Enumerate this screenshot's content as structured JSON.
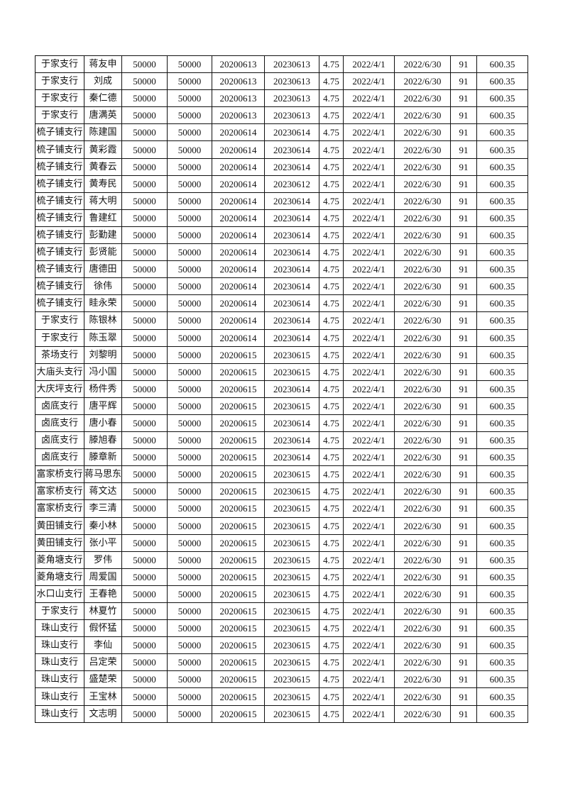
{
  "table": {
    "rows": [
      [
        "于家支行",
        "蒋友申",
        "50000",
        "50000",
        "20200613",
        "20230613",
        "4.75",
        "2022/4/1",
        "2022/6/30",
        "91",
        "600.35"
      ],
      [
        "于家支行",
        "刘成",
        "50000",
        "50000",
        "20200613",
        "20230613",
        "4.75",
        "2022/4/1",
        "2022/6/30",
        "91",
        "600.35"
      ],
      [
        "于家支行",
        "秦仁德",
        "50000",
        "50000",
        "20200613",
        "20230613",
        "4.75",
        "2022/4/1",
        "2022/6/30",
        "91",
        "600.35"
      ],
      [
        "于家支行",
        "唐满英",
        "50000",
        "50000",
        "20200613",
        "20230613",
        "4.75",
        "2022/4/1",
        "2022/6/30",
        "91",
        "600.35"
      ],
      [
        "梳子铺支行",
        "陈建国",
        "50000",
        "50000",
        "20200614",
        "20230614",
        "4.75",
        "2022/4/1",
        "2022/6/30",
        "91",
        "600.35"
      ],
      [
        "梳子铺支行",
        "黄彩霞",
        "50000",
        "50000",
        "20200614",
        "20230614",
        "4.75",
        "2022/4/1",
        "2022/6/30",
        "91",
        "600.35"
      ],
      [
        "梳子铺支行",
        "黄春云",
        "50000",
        "50000",
        "20200614",
        "20230614",
        "4.75",
        "2022/4/1",
        "2022/6/30",
        "91",
        "600.35"
      ],
      [
        "梳子铺支行",
        "黄寿民",
        "50000",
        "50000",
        "20200614",
        "20230612",
        "4.75",
        "2022/4/1",
        "2022/6/30",
        "91",
        "600.35"
      ],
      [
        "梳子铺支行",
        "蒋大明",
        "50000",
        "50000",
        "20200614",
        "20230614",
        "4.75",
        "2022/4/1",
        "2022/6/30",
        "91",
        "600.35"
      ],
      [
        "梳子铺支行",
        "鲁建红",
        "50000",
        "50000",
        "20200614",
        "20230614",
        "4.75",
        "2022/4/1",
        "2022/6/30",
        "91",
        "600.35"
      ],
      [
        "梳子铺支行",
        "彭勤建",
        "50000",
        "50000",
        "20200614",
        "20230614",
        "4.75",
        "2022/4/1",
        "2022/6/30",
        "91",
        "600.35"
      ],
      [
        "梳子铺支行",
        "彭贤能",
        "50000",
        "50000",
        "20200614",
        "20230614",
        "4.75",
        "2022/4/1",
        "2022/6/30",
        "91",
        "600.35"
      ],
      [
        "梳子铺支行",
        "唐德田",
        "50000",
        "50000",
        "20200614",
        "20230614",
        "4.75",
        "2022/4/1",
        "2022/6/30",
        "91",
        "600.35"
      ],
      [
        "梳子铺支行",
        "徐伟",
        "50000",
        "50000",
        "20200614",
        "20230614",
        "4.75",
        "2022/4/1",
        "2022/6/30",
        "91",
        "600.35"
      ],
      [
        "梳子铺支行",
        "眭永荣",
        "50000",
        "50000",
        "20200614",
        "20230614",
        "4.75",
        "2022/4/1",
        "2022/6/30",
        "91",
        "600.35"
      ],
      [
        "于家支行",
        "陈银林",
        "50000",
        "50000",
        "20200614",
        "20230614",
        "4.75",
        "2022/4/1",
        "2022/6/30",
        "91",
        "600.35"
      ],
      [
        "于家支行",
        "陈玉翠",
        "50000",
        "50000",
        "20200614",
        "20230614",
        "4.75",
        "2022/4/1",
        "2022/6/30",
        "91",
        "600.35"
      ],
      [
        "茶场支行",
        "刘黎明",
        "50000",
        "50000",
        "20200615",
        "20230615",
        "4.75",
        "2022/4/1",
        "2022/6/30",
        "91",
        "600.35"
      ],
      [
        "大庙头支行",
        "冯小国",
        "50000",
        "50000",
        "20200615",
        "20230615",
        "4.75",
        "2022/4/1",
        "2022/6/30",
        "91",
        "600.35"
      ],
      [
        "大庆坪支行",
        "杨件秀",
        "50000",
        "50000",
        "20200615",
        "20230614",
        "4.75",
        "2022/4/1",
        "2022/6/30",
        "91",
        "600.35"
      ],
      [
        "卤底支行",
        "唐平辉",
        "50000",
        "50000",
        "20200615",
        "20230615",
        "4.75",
        "2022/4/1",
        "2022/6/30",
        "91",
        "600.35"
      ],
      [
        "卤底支行",
        "唐小春",
        "50000",
        "50000",
        "20200615",
        "20230614",
        "4.75",
        "2022/4/1",
        "2022/6/30",
        "91",
        "600.35"
      ],
      [
        "卤底支行",
        "滕旭春",
        "50000",
        "50000",
        "20200615",
        "20230614",
        "4.75",
        "2022/4/1",
        "2022/6/30",
        "91",
        "600.35"
      ],
      [
        "卤底支行",
        "滕章新",
        "50000",
        "50000",
        "20200615",
        "20230614",
        "4.75",
        "2022/4/1",
        "2022/6/30",
        "91",
        "600.35"
      ],
      [
        "富家桥支行",
        "蒋马思东",
        "50000",
        "50000",
        "20200615",
        "20230615",
        "4.75",
        "2022/4/1",
        "2022/6/30",
        "91",
        "600.35"
      ],
      [
        "富家桥支行",
        "蒋文达",
        "50000",
        "50000",
        "20200615",
        "20230615",
        "4.75",
        "2022/4/1",
        "2022/6/30",
        "91",
        "600.35"
      ],
      [
        "富家桥支行",
        "李三清",
        "50000",
        "50000",
        "20200615",
        "20230615",
        "4.75",
        "2022/4/1",
        "2022/6/30",
        "91",
        "600.35"
      ],
      [
        "黄田铺支行",
        "秦小林",
        "50000",
        "50000",
        "20200615",
        "20230615",
        "4.75",
        "2022/4/1",
        "2022/6/30",
        "91",
        "600.35"
      ],
      [
        "黄田铺支行",
        "张小平",
        "50000",
        "50000",
        "20200615",
        "20230615",
        "4.75",
        "2022/4/1",
        "2022/6/30",
        "91",
        "600.35"
      ],
      [
        "菱角塘支行",
        "罗伟",
        "50000",
        "50000",
        "20200615",
        "20230615",
        "4.75",
        "2022/4/1",
        "2022/6/30",
        "91",
        "600.35"
      ],
      [
        "菱角塘支行",
        "周爱国",
        "50000",
        "50000",
        "20200615",
        "20230615",
        "4.75",
        "2022/4/1",
        "2022/6/30",
        "91",
        "600.35"
      ],
      [
        "水口山支行",
        "王春艳",
        "50000",
        "50000",
        "20200615",
        "20230615",
        "4.75",
        "2022/4/1",
        "2022/6/30",
        "91",
        "600.35"
      ],
      [
        "于家支行",
        "林夏竹",
        "50000",
        "50000",
        "20200615",
        "20230615",
        "4.75",
        "2022/4/1",
        "2022/6/30",
        "91",
        "600.35"
      ],
      [
        "珠山支行",
        "假怀猛",
        "50000",
        "50000",
        "20200615",
        "20230615",
        "4.75",
        "2022/4/1",
        "2022/6/30",
        "91",
        "600.35"
      ],
      [
        "珠山支行",
        "李仙",
        "50000",
        "50000",
        "20200615",
        "20230615",
        "4.75",
        "2022/4/1",
        "2022/6/30",
        "91",
        "600.35"
      ],
      [
        "珠山支行",
        "吕定荣",
        "50000",
        "50000",
        "20200615",
        "20230615",
        "4.75",
        "2022/4/1",
        "2022/6/30",
        "91",
        "600.35"
      ],
      [
        "珠山支行",
        "盛楚荣",
        "50000",
        "50000",
        "20200615",
        "20230615",
        "4.75",
        "2022/4/1",
        "2022/6/30",
        "91",
        "600.35"
      ],
      [
        "珠山支行",
        "王宝林",
        "50000",
        "50000",
        "20200615",
        "20230615",
        "4.75",
        "2022/4/1",
        "2022/6/30",
        "91",
        "600.35"
      ],
      [
        "珠山支行",
        "文志明",
        "50000",
        "50000",
        "20200615",
        "20230615",
        "4.75",
        "2022/4/1",
        "2022/6/30",
        "91",
        "600.35"
      ]
    ]
  }
}
